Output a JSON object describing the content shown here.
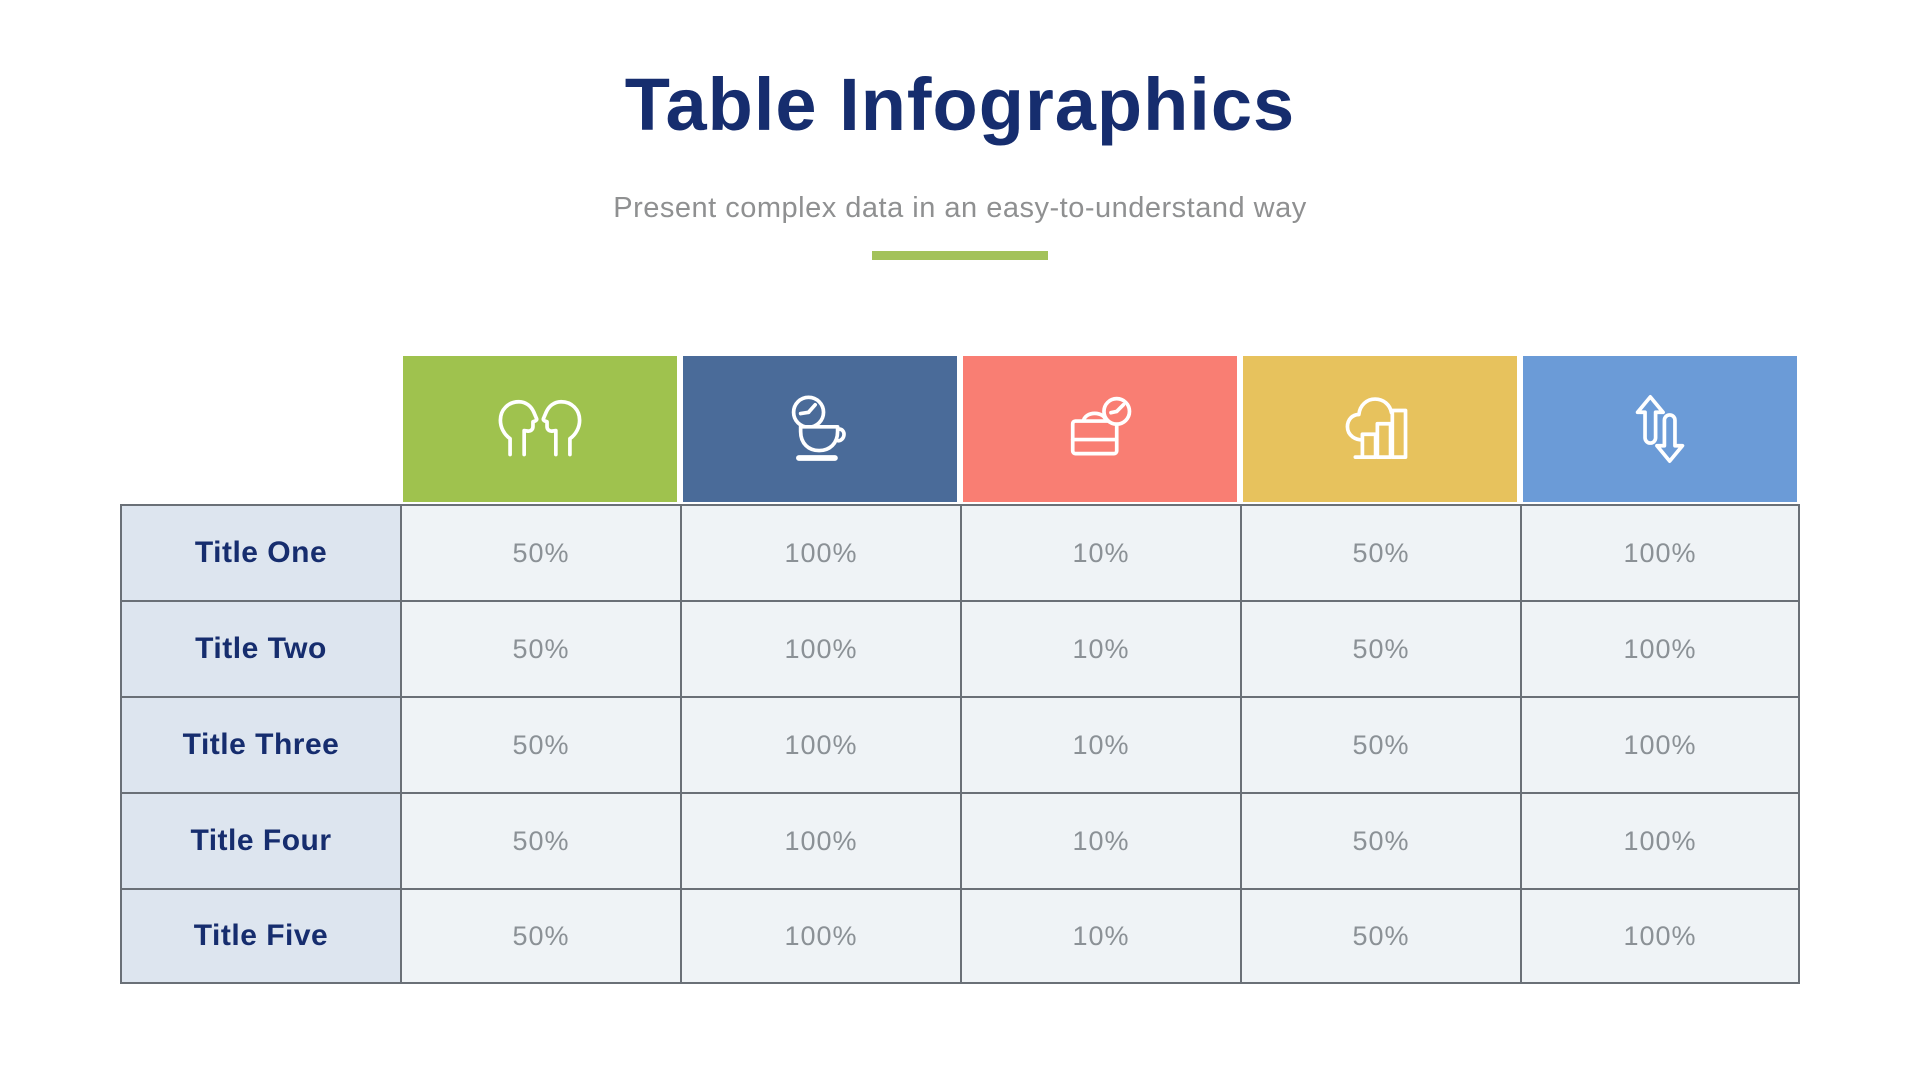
{
  "page": {
    "title": "Table Infographics",
    "subtitle": "Present complex data in an easy-to-understand way"
  },
  "theme": {
    "title_color": "#162d6e",
    "subtitle_color": "#8f9091",
    "accent_green": "#a3c25a",
    "border_color": "#6a7077",
    "label_bg": "#dde5ef",
    "cell_bg": "#eff3f6",
    "value_color": "#8b9196",
    "icon_color": "#ffffff"
  },
  "table": {
    "columns": [
      {
        "icon": "people-icon",
        "color": "#9fc24e"
      },
      {
        "icon": "coffee-clock-icon",
        "color": "#4a6b99"
      },
      {
        "icon": "briefcase-clock-icon",
        "color": "#f97e73"
      },
      {
        "icon": "cloud-chart-icon",
        "color": "#e7c25d"
      },
      {
        "icon": "arrows-up-down-icon",
        "color": "#6b9bd7"
      }
    ],
    "rows": [
      {
        "label": "Title One",
        "values": [
          "50%",
          "100%",
          "10%",
          "50%",
          "100%"
        ]
      },
      {
        "label": "Title Two",
        "values": [
          "50%",
          "100%",
          "10%",
          "50%",
          "100%"
        ]
      },
      {
        "label": "Title Three",
        "values": [
          "50%",
          "100%",
          "10%",
          "50%",
          "100%"
        ]
      },
      {
        "label": "Title Four",
        "values": [
          "50%",
          "100%",
          "10%",
          "50%",
          "100%"
        ]
      },
      {
        "label": "Title Five",
        "values": [
          "50%",
          "100%",
          "10%",
          "50%",
          "100%"
        ]
      }
    ]
  },
  "chart_data": {
    "type": "table",
    "title": "Table Infographics",
    "subtitle": "Present complex data in an easy-to-understand way",
    "columns": [
      "people",
      "coffee-break-time",
      "briefcase-with-clock",
      "cloud-bar-chart",
      "up-down-arrows"
    ],
    "row_labels": [
      "Title One",
      "Title Two",
      "Title Three",
      "Title Four",
      "Title Five"
    ],
    "rows": [
      [
        "50%",
        "100%",
        "10%",
        "50%",
        "100%"
      ],
      [
        "50%",
        "100%",
        "10%",
        "50%",
        "100%"
      ],
      [
        "50%",
        "100%",
        "10%",
        "50%",
        "100%"
      ],
      [
        "50%",
        "100%",
        "10%",
        "50%",
        "100%"
      ],
      [
        "50%",
        "100%",
        "10%",
        "50%",
        "100%"
      ]
    ]
  }
}
